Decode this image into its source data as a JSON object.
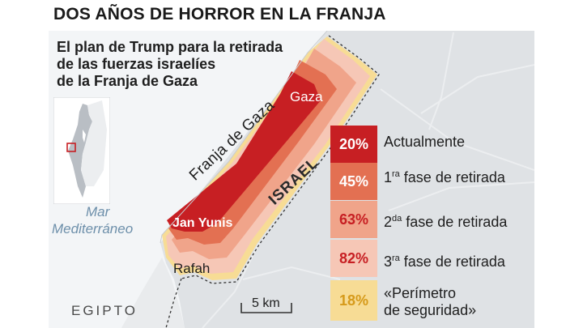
{
  "title": "DOS AÑOS DE HORROR EN LA FRANJA",
  "subtitle": {
    "line1": "El plan de Trump para la retirada",
    "line2": "de las fuerzas israelíes",
    "line3": "de la Franja de Gaza"
  },
  "places": {
    "gaza": "Gaza",
    "strip": "Franja de Gaza",
    "israel": "ISRAEL",
    "sea_line1": "Mar",
    "sea_line2": "Mediterráneo",
    "khan_yunis": "Jan Yunis",
    "rafah": "Rafah",
    "egypt": "EGIPTO"
  },
  "scale": {
    "label": "5 km"
  },
  "legend": [
    {
      "value": "20%",
      "label": "Actualmente",
      "color": "#c71f23",
      "text_color": "#ffffff"
    },
    {
      "value": "45%",
      "ordinal": "1",
      "suffix": "ra",
      "label": " fase de retirada",
      "color": "#e37052",
      "text_color": "#ffffff"
    },
    {
      "value": "63%",
      "ordinal": "2",
      "suffix": "da",
      "label": " fase de retirada",
      "color": "#f0a48a",
      "text_color": "#c71f23"
    },
    {
      "value": "82%",
      "ordinal": "3",
      "suffix": "ra",
      "label": " fase de retirada",
      "color": "#f6c7b6",
      "text_color": "#c71f23"
    },
    {
      "value": "18%",
      "label_line1": "«Perímetro",
      "label_line2": "de seguridad»",
      "color": "#f7dc95",
      "text_color": "#d69a1a"
    }
  ],
  "colors": {
    "land": "#dfe2e5",
    "sea": "#f3f5f7",
    "road": "#eef0f2",
    "inset_land": "#b9bec4",
    "inset_marker": "#c71f23"
  }
}
